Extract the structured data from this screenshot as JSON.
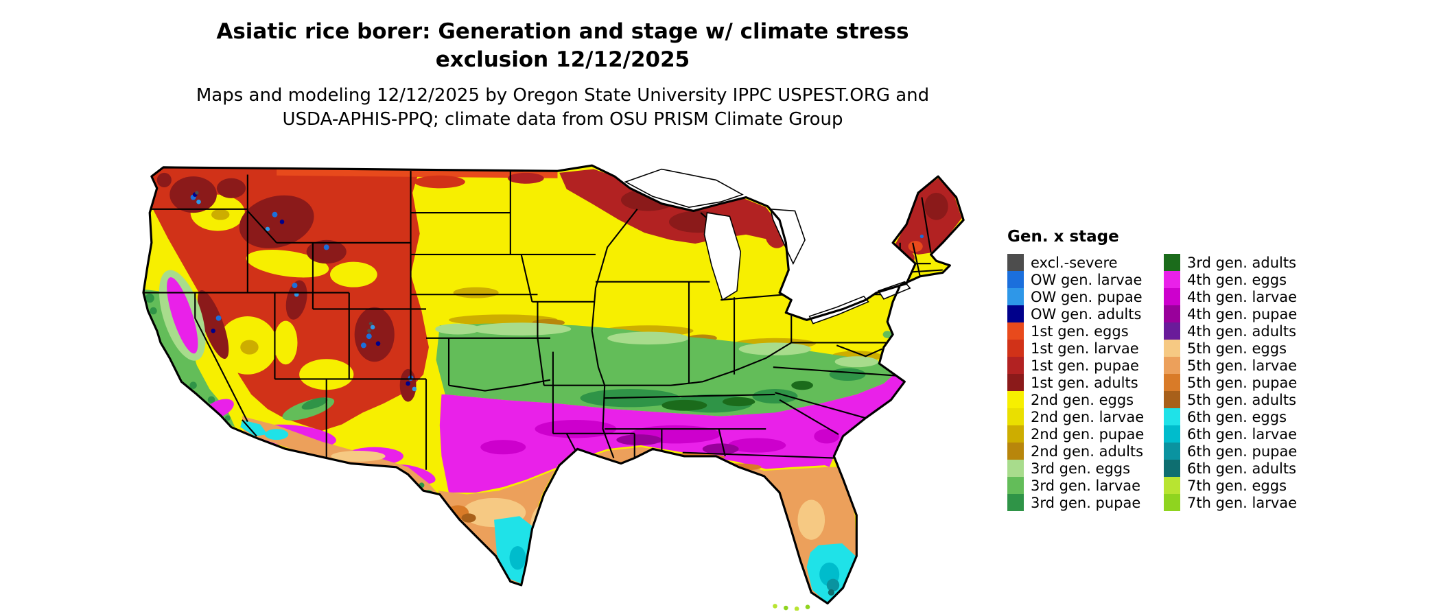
{
  "title": {
    "line1": "Asiatic rice borer: Generation and stage w/ climate stress",
    "line2": "exclusion 12/12/2025"
  },
  "subtitle": {
    "line1": "Maps and modeling 12/12/2025 by Oregon State University IPPC USPEST.ORG and",
    "line2": "USDA-APHIS-PPQ; climate data from OSU PRISM Climate Group"
  },
  "map": {
    "description": "Choropleth map of the contiguous United States colored by Asiatic rice borer generation and life stage"
  },
  "palette": {
    "excl": "#4d4d4d",
    "ow_larvae": "#1b6fdc",
    "ow_pupae": "#2e97e8",
    "ow_adults": "#00008b",
    "g1_eggs": "#e84a1c",
    "g1_larvae": "#d13218",
    "g1_pupae": "#b22222",
    "g1_adults": "#8b1a1a",
    "g2_eggs": "#f7ef00",
    "g2_larvae": "#eadf00",
    "g2_pupae": "#cdad00",
    "g2_adults": "#b8860b",
    "g3_eggs": "#a8dc8c",
    "g3_larvae": "#63bd59",
    "g3_pupae": "#2f9447",
    "g3_adults": "#1b6b1b",
    "g4_eggs": "#e921e9",
    "g4_larvae": "#cd00cd",
    "g4_pupae": "#99009b",
    "g4_adults": "#6a1b9a",
    "g5_eggs": "#f6c983",
    "g5_larvae": "#eca05b",
    "g5_pupae": "#d97b28",
    "g5_adults": "#a8601a",
    "g6_eggs": "#1fe2e8",
    "g6_larvae": "#00bccc",
    "g6_pupae": "#0a93a0",
    "g6_adults": "#0e6e70",
    "g7_eggs": "#b8e431",
    "g7_larvae": "#8fd41f"
  },
  "legend": {
    "title": "Gen. x stage",
    "columns": [
      [
        {
          "label": "excl.-severe",
          "color_key": "excl"
        },
        {
          "label": "OW gen. larvae",
          "color_key": "ow_larvae"
        },
        {
          "label": "OW gen. pupae",
          "color_key": "ow_pupae"
        },
        {
          "label": "OW gen. adults",
          "color_key": "ow_adults"
        },
        {
          "label": "1st gen. eggs",
          "color_key": "g1_eggs"
        },
        {
          "label": "1st gen. larvae",
          "color_key": "g1_larvae"
        },
        {
          "label": "1st gen. pupae",
          "color_key": "g1_pupae"
        },
        {
          "label": "1st gen. adults",
          "color_key": "g1_adults"
        },
        {
          "label": "2nd gen. eggs",
          "color_key": "g2_eggs"
        },
        {
          "label": "2nd gen. larvae",
          "color_key": "g2_larvae"
        },
        {
          "label": "2nd gen. pupae",
          "color_key": "g2_pupae"
        },
        {
          "label": "2nd gen. adults",
          "color_key": "g2_adults"
        },
        {
          "label": "3rd gen. eggs",
          "color_key": "g3_eggs"
        },
        {
          "label": "3rd gen. larvae",
          "color_key": "g3_larvae"
        },
        {
          "label": "3rd gen. pupae",
          "color_key": "g3_pupae"
        }
      ],
      [
        {
          "label": "3rd gen. adults",
          "color_key": "g3_adults"
        },
        {
          "label": "4th gen. eggs",
          "color_key": "g4_eggs"
        },
        {
          "label": "4th gen. larvae",
          "color_key": "g4_larvae"
        },
        {
          "label": "4th gen. pupae",
          "color_key": "g4_pupae"
        },
        {
          "label": "4th gen. adults",
          "color_key": "g4_adults"
        },
        {
          "label": "5th gen. eggs",
          "color_key": "g5_eggs"
        },
        {
          "label": "5th gen. larvae",
          "color_key": "g5_larvae"
        },
        {
          "label": "5th gen. pupae",
          "color_key": "g5_pupae"
        },
        {
          "label": "5th gen. adults",
          "color_key": "g5_adults"
        },
        {
          "label": "6th gen. eggs",
          "color_key": "g6_eggs"
        },
        {
          "label": "6th gen. larvae",
          "color_key": "g6_larvae"
        },
        {
          "label": "6th gen. pupae",
          "color_key": "g6_pupae"
        },
        {
          "label": "6th gen. adults",
          "color_key": "g6_adults"
        },
        {
          "label": "7th gen. eggs",
          "color_key": "g7_eggs"
        },
        {
          "label": "7th gen. larvae",
          "color_key": "g7_larvae"
        }
      ]
    ]
  }
}
